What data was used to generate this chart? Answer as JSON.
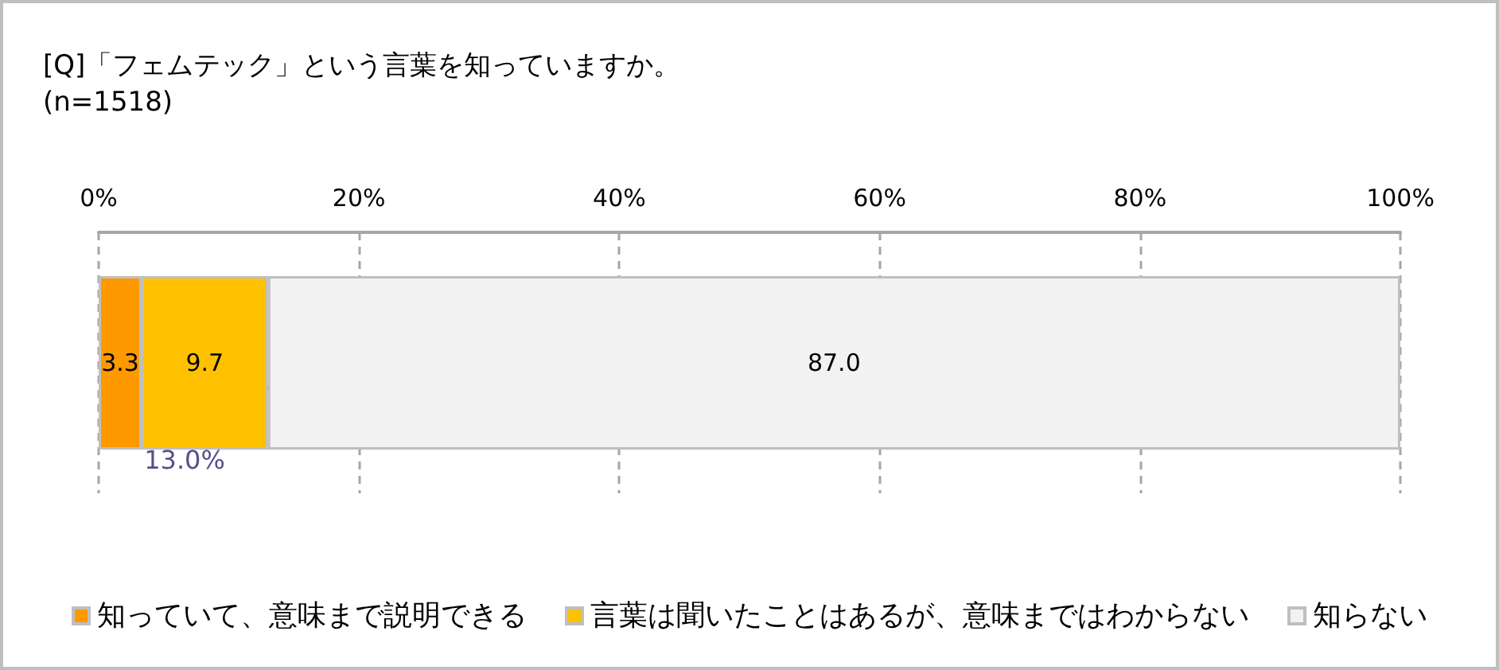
{
  "chart_data": {
    "type": "bar",
    "orientation": "horizontal",
    "stacked": true,
    "title": "[Q]「フェムテック」という言葉を知っていますか。",
    "subtitle": "(n=1518)",
    "categories": [
      null
    ],
    "series": [
      {
        "name": "知っていて、意味まで説明できる",
        "color": "#ff9900",
        "values": [
          3.3
        ],
        "value_labels": [
          "3.3"
        ]
      },
      {
        "name": "言葉は聞いたことはあるが、意味まではわからない",
        "color": "#ffc000",
        "values": [
          9.7
        ],
        "value_labels": [
          "9.7"
        ]
      },
      {
        "name": "知らない",
        "color": "#f2f2f2",
        "values": [
          87.0
        ],
        "value_labels": [
          "87.0"
        ]
      }
    ],
    "xlim": [
      0,
      100
    ],
    "xticks": [
      {
        "value": 0,
        "label": "0%"
      },
      {
        "value": 20,
        "label": "20%"
      },
      {
        "value": 40,
        "label": "40%"
      },
      {
        "value": 60,
        "label": "60%"
      },
      {
        "value": 80,
        "label": "80%"
      },
      {
        "value": 100,
        "label": "100%"
      }
    ],
    "annotations": [
      "13.0%"
    ],
    "grid": "x",
    "legend": "bottom"
  }
}
